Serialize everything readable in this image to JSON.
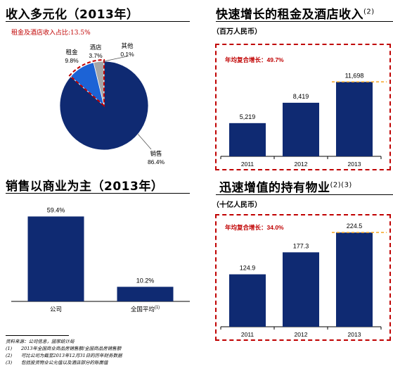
{
  "panels": {
    "revenue_mix": {
      "title": "收入多元化（2013年）",
      "note": "租金及酒店收入占比:13.5%"
    },
    "rental_growth": {
      "title": "快速增长的租金及酒店收入",
      "title_sup": "(2)",
      "unit": "（百万人民币）",
      "cagr": "年均复合增长：49.7%"
    },
    "sales_mix": {
      "title": "销售以商业为主（2013年）"
    },
    "property_value": {
      "title": "迅速增值的持有物业",
      "title_sup": "(2)(3)",
      "unit": "（十亿人民币）",
      "cagr": "年均复合增长：34.0%"
    }
  },
  "footnotes": {
    "source": "资料来源：公司信息，国家统计局",
    "items": [
      {
        "num": "(1)",
        "text": "2013年全国商业商品房销售额/全国商品房销售额"
      },
      {
        "num": "(2)",
        "text": "可比公司为截至2013年12月31日的历年财务数据"
      },
      {
        "num": "(3)",
        "text": "包括投资物业公允值以及酒店部分的账面值"
      }
    ]
  },
  "colors": {
    "navy": "#0f2a72",
    "blue": "#1c63d6",
    "gray": "#a6a6a6",
    "red": "#c00000",
    "orange": "#f5a623"
  },
  "chart_data": [
    {
      "type": "pie",
      "labels": [
        "销售",
        "租金",
        "酒店",
        "其他"
      ],
      "values": [
        86.4,
        9.8,
        3.7,
        0.1
      ],
      "value_labels": [
        "86.4%",
        "9.8%",
        "3.7%",
        "0.1%"
      ],
      "colors": [
        "#0f2a72",
        "#1c63d6",
        "#a6a6a6",
        "#7f7f7f"
      ],
      "highlight": "租金及酒店 outlined with red dashed line"
    },
    {
      "type": "bar",
      "categories": [
        "2011",
        "2012",
        "2013"
      ],
      "values": [
        5219,
        8419,
        11698
      ],
      "value_labels": [
        "5,219",
        "8,419",
        "11,698"
      ],
      "ylim": [
        0,
        13500
      ],
      "annotation": "年均复合增长：49.7%"
    },
    {
      "type": "bar",
      "categories": [
        "公司",
        "全国平均"
      ],
      "category_sups": [
        "",
        "(1)"
      ],
      "values": [
        59.4,
        10.2
      ],
      "value_labels": [
        "59.4%",
        "10.2%"
      ],
      "ylim": [
        0,
        66
      ]
    },
    {
      "type": "bar",
      "categories": [
        "2011",
        "2012",
        "2013"
      ],
      "values": [
        124.9,
        177.3,
        224.5
      ],
      "value_labels": [
        "124.9",
        "177.3",
        "224.5"
      ],
      "ylim": [
        0,
        255
      ],
      "annotation": "年均复合增长：34.0%"
    }
  ]
}
